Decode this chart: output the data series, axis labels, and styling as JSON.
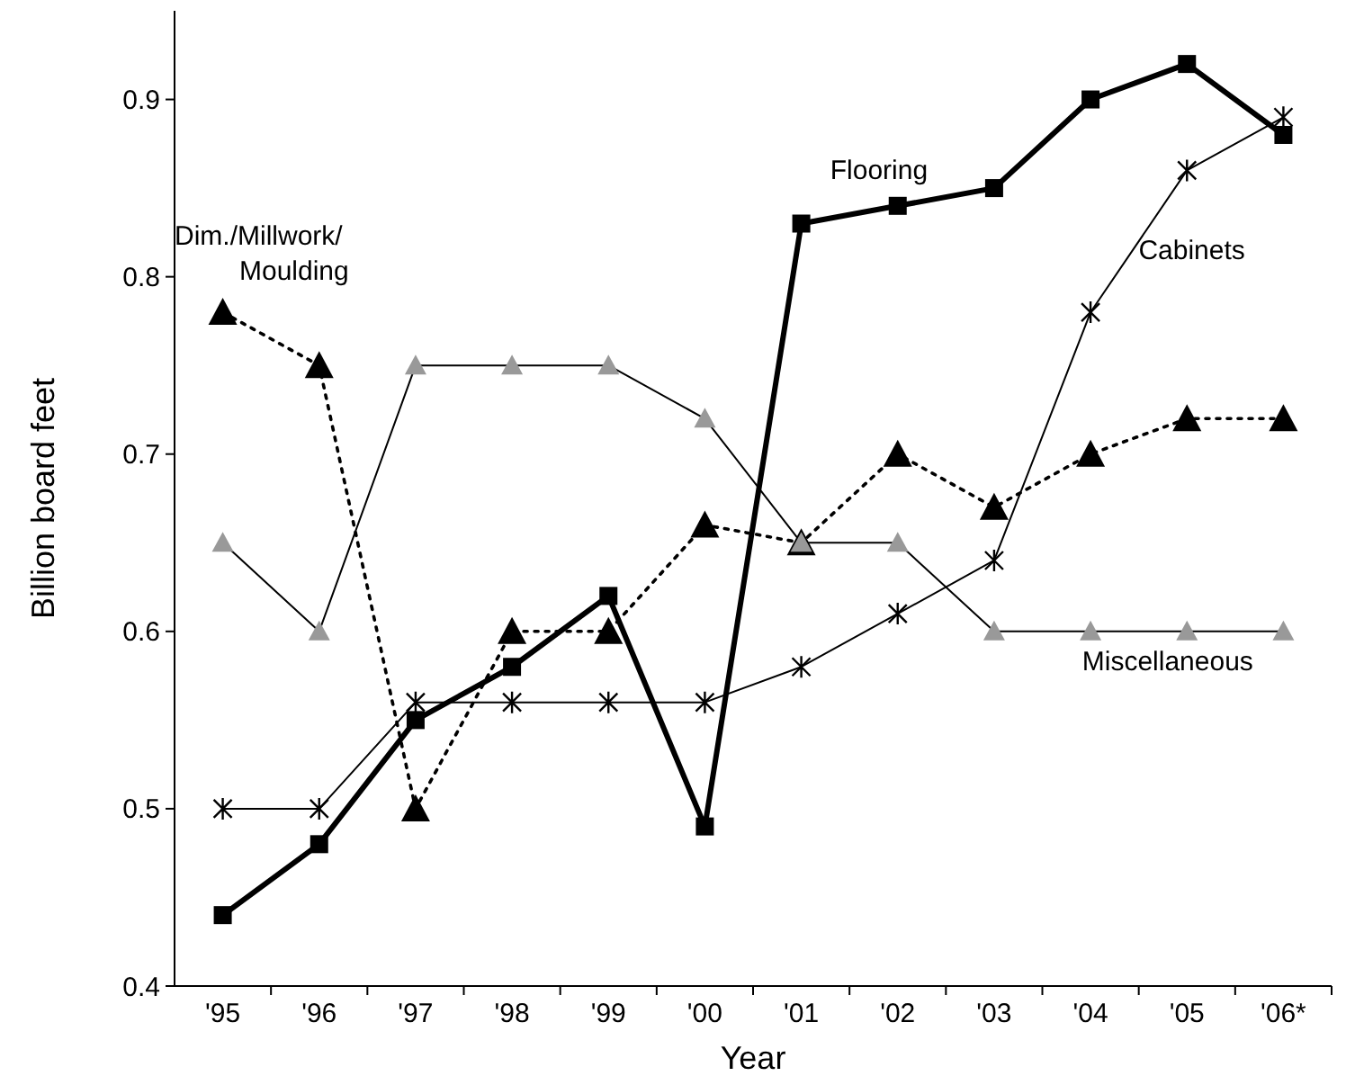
{
  "chart_data": {
    "type": "line",
    "xlabel": "Year",
    "ylabel": "Billion board feet",
    "categories": [
      "'95",
      "'96",
      "'97",
      "'98",
      "'99",
      "'00",
      "'01",
      "'02",
      "'03",
      "'04",
      "'05",
      "'06*"
    ],
    "ylim": [
      0.4,
      0.95
    ],
    "yticks": [
      {
        "value": 0.4,
        "label": "0.4"
      },
      {
        "value": 0.5,
        "label": "0.5"
      },
      {
        "value": 0.6,
        "label": "0.6"
      },
      {
        "value": 0.7,
        "label": "0.7"
      },
      {
        "value": 0.8,
        "label": "0.8"
      },
      {
        "value": 0.9,
        "label": "0.9"
      }
    ],
    "grid": false,
    "series": [
      {
        "name": "Flooring",
        "color": "#000000",
        "marker": "square",
        "line_style": "solid",
        "values": [
          0.44,
          0.48,
          0.55,
          0.58,
          0.62,
          0.49,
          0.83,
          0.84,
          0.85,
          0.9,
          0.92,
          0.88
        ]
      },
      {
        "name": "Cabinets",
        "color": "#000000",
        "marker": "cross",
        "line_style": "solid",
        "values": [
          0.5,
          0.5,
          0.56,
          0.56,
          0.56,
          0.56,
          0.58,
          0.61,
          0.64,
          0.78,
          0.86,
          0.89
        ]
      },
      {
        "name": "Dim./Millwork/ Moulding",
        "color": "#000000",
        "marker": "triangle",
        "line_style": "dotted",
        "values": [
          0.78,
          0.75,
          0.5,
          0.6,
          0.6,
          0.66,
          0.65,
          0.7,
          0.67,
          0.7,
          0.72,
          0.72
        ]
      },
      {
        "name": "Miscellaneous",
        "color": "#999999",
        "marker": "triangle",
        "line_style": "solid",
        "values": [
          0.65,
          0.6,
          0.75,
          0.75,
          0.75,
          0.72,
          0.65,
          0.65,
          0.6,
          0.6,
          0.6,
          0.6
        ]
      }
    ]
  }
}
